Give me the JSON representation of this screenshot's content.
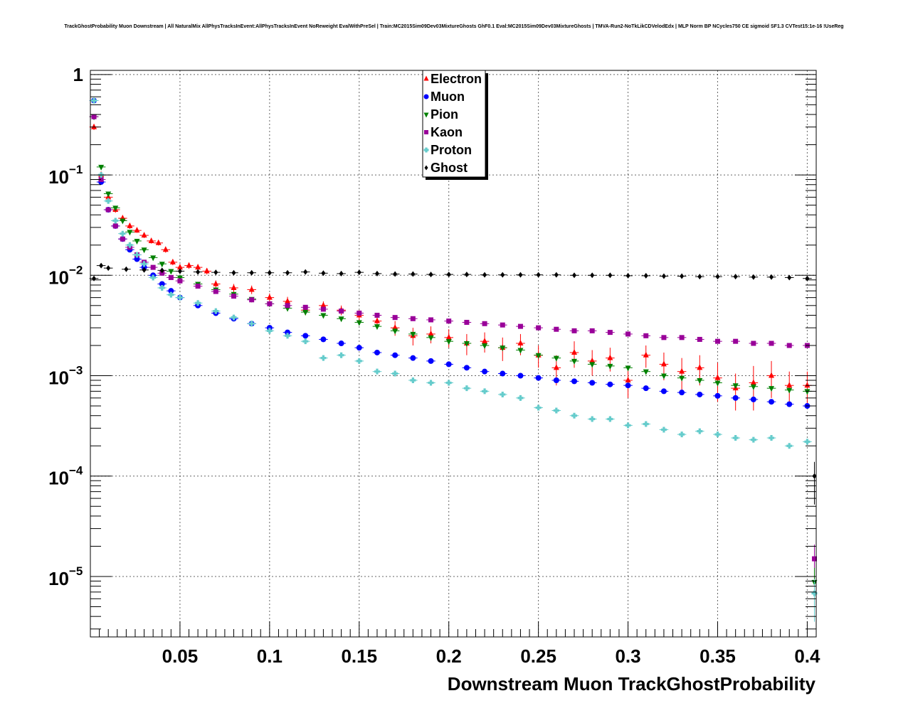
{
  "chart_data": {
    "type": "scatter",
    "title": "TrackGhostProbability Muon Downstream | All NaturalMix AllPhysTracksInEvent:AllPhysTracksInEvent NoReweight EvalWithPreSel | Train:MC2015Sim09Dev03MixtureGhosts GhF0.1 Eval:MC2015Sim09Dev03MixtureGhosts | TMVA-Run2-NoTkLikCDVelodEdx | MLP Norm BP NCycles750 CE sigmoid SF1.3 CVTest15:1e-16 !UseReg",
    "xlabel": "Downstream Muon TrackGhostProbability",
    "ylabel": "",
    "xlim": [
      0.0,
      0.405
    ],
    "ylim": [
      2.5e-06,
      1.1
    ],
    "yscale": "log",
    "grid": true,
    "legend_position": "top-center",
    "x_ticks": [
      {
        "value": 0.05,
        "label": "0.05"
      },
      {
        "value": 0.1,
        "label": "0.1"
      },
      {
        "value": 0.15,
        "label": "0.15"
      },
      {
        "value": 0.2,
        "label": "0.2"
      },
      {
        "value": 0.25,
        "label": "0.25"
      },
      {
        "value": 0.3,
        "label": "0.3"
      },
      {
        "value": 0.35,
        "label": "0.35"
      },
      {
        "value": 0.4,
        "label": "0.4"
      }
    ],
    "y_ticks": [
      {
        "value": 1,
        "base": "1",
        "exp": ""
      },
      {
        "value": 0.1,
        "base": "10",
        "exp": "−1"
      },
      {
        "value": 0.01,
        "base": "10",
        "exp": "−2"
      },
      {
        "value": 0.001,
        "base": "10",
        "exp": "−3"
      },
      {
        "value": 0.0001,
        "base": "10",
        "exp": "−4"
      },
      {
        "value": 1e-05,
        "base": "10",
        "exp": "−5"
      }
    ],
    "series": [
      {
        "name": "Electron",
        "color": "#ff0000",
        "marker": "triangle-up",
        "x": [
          0.002,
          0.006,
          0.01,
          0.014,
          0.018,
          0.022,
          0.026,
          0.03,
          0.034,
          0.038,
          0.042,
          0.046,
          0.05,
          0.055,
          0.06,
          0.065,
          0.07,
          0.08,
          0.09,
          0.1,
          0.11,
          0.12,
          0.13,
          0.14,
          0.15,
          0.16,
          0.17,
          0.18,
          0.19,
          0.2,
          0.21,
          0.22,
          0.23,
          0.24,
          0.25,
          0.26,
          0.27,
          0.28,
          0.29,
          0.3,
          0.31,
          0.32,
          0.33,
          0.34,
          0.35,
          0.36,
          0.37,
          0.38,
          0.39,
          0.4
        ],
        "y": [
          0.3,
          0.1,
          0.06,
          0.045,
          0.037,
          0.031,
          0.028,
          0.025,
          0.022,
          0.021,
          0.018,
          0.0135,
          0.012,
          0.0125,
          0.012,
          0.011,
          0.0082,
          0.0075,
          0.0072,
          0.006,
          0.0055,
          0.0045,
          0.005,
          0.0045,
          0.004,
          0.0035,
          0.003,
          0.0025,
          0.0026,
          0.0024,
          0.0021,
          0.0022,
          0.0019,
          0.0021,
          0.0016,
          0.0012,
          0.0017,
          0.0014,
          0.0015,
          0.0009,
          0.0016,
          0.0013,
          0.0011,
          0.0012,
          0.00095,
          0.00075,
          0.00085,
          0.001,
          0.0008,
          0.0008
        ],
        "yerr": [
          0.02,
          0.008,
          0.004,
          0.003,
          0.002,
          0.002,
          0.0015,
          0.0015,
          0.0013,
          0.0012,
          0.0012,
          0.0009,
          0.0009,
          0.0009,
          0.0009,
          0.0008,
          0.0007,
          0.0007,
          0.0007,
          0.0006,
          0.0006,
          0.0005,
          0.0005,
          0.0005,
          0.0005,
          0.0005,
          0.0005,
          0.0005,
          0.0005,
          0.0005,
          0.0005,
          0.0005,
          0.0005,
          0.0005,
          0.0004,
          0.0004,
          0.0005,
          0.0004,
          0.0004,
          0.0003,
          0.0004,
          0.0004,
          0.0004,
          0.0004,
          0.0004,
          0.0003,
          0.0004,
          0.0004,
          0.0003,
          0.0003
        ]
      },
      {
        "name": "Muon",
        "color": "#0000ff",
        "marker": "circle",
        "x": [
          0.002,
          0.006,
          0.01,
          0.014,
          0.018,
          0.022,
          0.026,
          0.03,
          0.035,
          0.04,
          0.045,
          0.05,
          0.06,
          0.07,
          0.08,
          0.09,
          0.1,
          0.11,
          0.12,
          0.13,
          0.14,
          0.15,
          0.16,
          0.17,
          0.18,
          0.19,
          0.2,
          0.21,
          0.22,
          0.23,
          0.24,
          0.25,
          0.26,
          0.27,
          0.28,
          0.29,
          0.3,
          0.31,
          0.32,
          0.33,
          0.34,
          0.35,
          0.36,
          0.37,
          0.38,
          0.39,
          0.4
        ],
        "y": [
          0.55,
          0.085,
          0.045,
          0.031,
          0.023,
          0.018,
          0.0145,
          0.012,
          0.01,
          0.0082,
          0.007,
          0.006,
          0.005,
          0.0042,
          0.0037,
          0.0033,
          0.003,
          0.0027,
          0.0025,
          0.0023,
          0.0021,
          0.0019,
          0.0017,
          0.0016,
          0.0015,
          0.0014,
          0.0013,
          0.0012,
          0.0011,
          0.00105,
          0.001,
          0.00095,
          0.0009,
          0.00088,
          0.00085,
          0.00082,
          0.0008,
          0.00075,
          0.0007,
          0.00068,
          0.00065,
          0.00063,
          0.0006,
          0.00058,
          0.00055,
          0.00052,
          0.0005
        ]
      },
      {
        "name": "Pion",
        "color": "#008000",
        "marker": "triangle-down",
        "x": [
          0.002,
          0.006,
          0.01,
          0.014,
          0.018,
          0.022,
          0.026,
          0.03,
          0.035,
          0.04,
          0.045,
          0.05,
          0.06,
          0.07,
          0.08,
          0.09,
          0.1,
          0.11,
          0.12,
          0.13,
          0.14,
          0.15,
          0.16,
          0.17,
          0.18,
          0.19,
          0.2,
          0.21,
          0.22,
          0.23,
          0.24,
          0.25,
          0.26,
          0.27,
          0.28,
          0.29,
          0.3,
          0.31,
          0.32,
          0.33,
          0.34,
          0.35,
          0.36,
          0.37,
          0.38,
          0.39,
          0.4
        ],
        "y": [
          0.38,
          0.12,
          0.065,
          0.047,
          0.035,
          0.027,
          0.022,
          0.018,
          0.015,
          0.013,
          0.011,
          0.0095,
          0.0082,
          0.0072,
          0.0065,
          0.0058,
          0.0052,
          0.0047,
          0.0043,
          0.004,
          0.0037,
          0.0034,
          0.0031,
          0.0028,
          0.0026,
          0.0024,
          0.0022,
          0.0021,
          0.002,
          0.0019,
          0.0018,
          0.0016,
          0.0015,
          0.0014,
          0.0013,
          0.00125,
          0.0012,
          0.0011,
          0.001,
          0.00095,
          0.0009,
          0.00085,
          0.0008,
          0.00078,
          0.00075,
          0.00072,
          0.0007
        ]
      },
      {
        "name": "Kaon",
        "color": "#990099",
        "marker": "square",
        "x": [
          0.002,
          0.006,
          0.01,
          0.014,
          0.018,
          0.022,
          0.026,
          0.03,
          0.035,
          0.04,
          0.045,
          0.05,
          0.06,
          0.07,
          0.08,
          0.09,
          0.1,
          0.11,
          0.12,
          0.13,
          0.14,
          0.15,
          0.16,
          0.17,
          0.18,
          0.19,
          0.2,
          0.21,
          0.22,
          0.23,
          0.24,
          0.25,
          0.26,
          0.27,
          0.28,
          0.29,
          0.3,
          0.31,
          0.32,
          0.33,
          0.34,
          0.35,
          0.36,
          0.37,
          0.38,
          0.39,
          0.4
        ],
        "y": [
          0.38,
          0.09,
          0.045,
          0.031,
          0.023,
          0.019,
          0.016,
          0.0135,
          0.012,
          0.0105,
          0.0095,
          0.0088,
          0.0078,
          0.0069,
          0.0062,
          0.0057,
          0.0052,
          0.005,
          0.0048,
          0.0046,
          0.0044,
          0.0042,
          0.004,
          0.0038,
          0.0037,
          0.0036,
          0.0035,
          0.0034,
          0.0033,
          0.0032,
          0.0031,
          0.003,
          0.0029,
          0.0028,
          0.0028,
          0.0027,
          0.0026,
          0.0025,
          0.0024,
          0.0024,
          0.0023,
          0.0022,
          0.0022,
          0.0021,
          0.0021,
          0.002,
          0.002
        ]
      },
      {
        "name": "Proton",
        "color": "#66cccc",
        "marker": "cross",
        "x": [
          0.002,
          0.006,
          0.01,
          0.014,
          0.018,
          0.022,
          0.026,
          0.03,
          0.035,
          0.04,
          0.045,
          0.05,
          0.06,
          0.07,
          0.08,
          0.09,
          0.1,
          0.11,
          0.12,
          0.13,
          0.14,
          0.15,
          0.16,
          0.17,
          0.18,
          0.19,
          0.2,
          0.21,
          0.22,
          0.23,
          0.24,
          0.25,
          0.26,
          0.27,
          0.28,
          0.29,
          0.3,
          0.31,
          0.32,
          0.33,
          0.34,
          0.35,
          0.36,
          0.37,
          0.38,
          0.39,
          0.4
        ],
        "y": [
          0.55,
          0.1,
          0.055,
          0.035,
          0.026,
          0.02,
          0.016,
          0.013,
          0.0095,
          0.0075,
          0.0064,
          0.006,
          0.0053,
          0.0044,
          0.0038,
          0.0033,
          0.0028,
          0.0025,
          0.0022,
          0.0015,
          0.0016,
          0.0014,
          0.0011,
          0.00105,
          0.0009,
          0.00085,
          0.00085,
          0.00075,
          0.0007,
          0.00065,
          0.0006,
          0.00048,
          0.00045,
          0.0004,
          0.00037,
          0.00037,
          0.00032,
          0.00033,
          0.00029,
          0.00026,
          0.00028,
          0.00026,
          0.00024,
          0.00023,
          0.00024,
          0.0002,
          0.00022
        ]
      },
      {
        "name": "Ghost",
        "color": "#000000",
        "marker": "diamond",
        "x": [
          0.002,
          0.006,
          0.01,
          0.02,
          0.03,
          0.04,
          0.05,
          0.06,
          0.07,
          0.08,
          0.09,
          0.1,
          0.11,
          0.12,
          0.13,
          0.14,
          0.15,
          0.16,
          0.17,
          0.18,
          0.19,
          0.2,
          0.21,
          0.22,
          0.23,
          0.24,
          0.25,
          0.26,
          0.27,
          0.28,
          0.29,
          0.3,
          0.31,
          0.32,
          0.33,
          0.34,
          0.35,
          0.36,
          0.37,
          0.38,
          0.39,
          0.4
        ],
        "y": [
          0.0093,
          0.0125,
          0.0118,
          0.0115,
          0.0113,
          0.0112,
          0.011,
          0.0108,
          0.0107,
          0.0106,
          0.0106,
          0.0106,
          0.0106,
          0.0108,
          0.0105,
          0.0104,
          0.0107,
          0.0104,
          0.0103,
          0.0103,
          0.0102,
          0.0102,
          0.0102,
          0.0101,
          0.0101,
          0.0101,
          0.0101,
          0.0101,
          0.01,
          0.01,
          0.01,
          0.0099,
          0.0099,
          0.0098,
          0.0098,
          0.0097,
          0.0097,
          0.0097,
          0.0096,
          0.0096,
          0.0095,
          0.0093
        ]
      }
    ],
    "last_bin_points": [
      {
        "series": "Ghost",
        "x": 0.404,
        "y": 0.0001
      },
      {
        "series": "Kaon",
        "x": 0.404,
        "y": 1.5e-05
      },
      {
        "series": "Pion",
        "x": 0.404,
        "y": 8.8e-06
      },
      {
        "series": "Proton",
        "x": 0.404,
        "y": 6.8e-06
      }
    ]
  }
}
